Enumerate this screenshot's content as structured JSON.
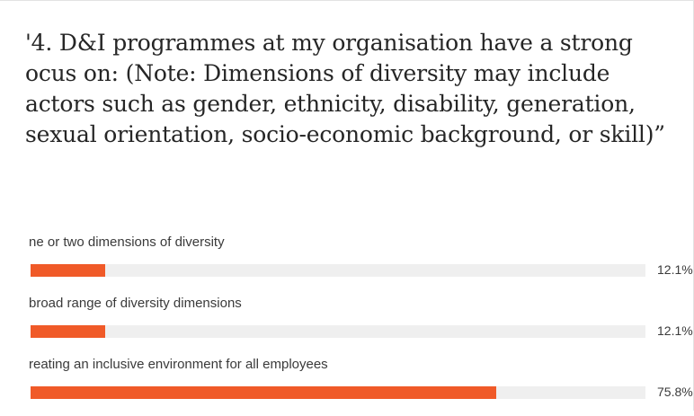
{
  "question": {
    "lines": [
      "'4. D&I programmes at my organisation have a strong",
      "ocus on: (Note: Dimensions of diversity may include",
      "actors such as gender, ethnicity, disability, generation,",
      "sexual orientation, socio-economic background, or skill)”"
    ]
  },
  "chart_data": {
    "type": "bar",
    "orientation": "horizontal",
    "title": "",
    "categories": [
      "ne or two dimensions of diversity",
      "broad range of diversity dimensions",
      "reating an inclusive environment for all employees"
    ],
    "values": [
      12.1,
      12.1,
      75.8
    ],
    "value_labels": [
      "12.1%",
      "12.1%",
      "75.8%"
    ],
    "xlim": [
      0,
      100
    ],
    "grid": false,
    "legend": "none",
    "colors": {
      "bar": "#f05a28",
      "track": "#efefef"
    }
  }
}
